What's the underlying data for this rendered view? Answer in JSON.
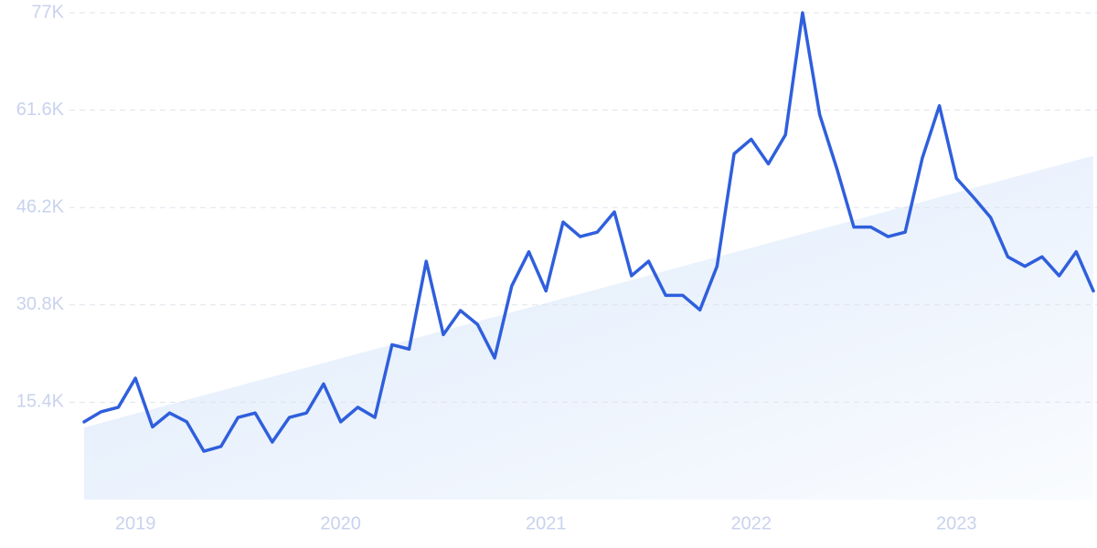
{
  "chart_data": {
    "type": "line",
    "categories": [
      null,
      null,
      null,
      "2019",
      null,
      null,
      null,
      null,
      null,
      null,
      null,
      null,
      null,
      null,
      null,
      "2020",
      null,
      null,
      null,
      null,
      null,
      null,
      null,
      null,
      null,
      null,
      null,
      "2021",
      null,
      null,
      null,
      null,
      null,
      null,
      null,
      null,
      null,
      null,
      null,
      "2022",
      null,
      null,
      null,
      null,
      null,
      null,
      null,
      null,
      null,
      null,
      null,
      "2023",
      null,
      null,
      null,
      null,
      null,
      null,
      null,
      null
    ],
    "series": [
      {
        "color": "#2f5fdc",
        "values": [
          12300,
          13900,
          14600,
          19200,
          11500,
          13700,
          12300,
          7650,
          8400,
          13000,
          13700,
          9100,
          13000,
          13700,
          18300,
          12300,
          14600,
          13000,
          24500,
          23800,
          37700,
          26100,
          29900,
          27700,
          22400,
          33800,
          39200,
          33000,
          43900,
          41600,
          42300,
          45500,
          35400,
          37700,
          32300,
          32300,
          30000,
          36900,
          54700,
          57000,
          53100,
          57700,
          77000,
          60900,
          52400,
          43100,
          43100,
          41600,
          42300,
          54000,
          62300,
          50800,
          47800,
          44600,
          38400,
          36900,
          38400,
          35400,
          39200,
          33000
        ]
      }
    ],
    "trend": {
      "color": "#dce9fb",
      "values": [
        11400,
        54400
      ]
    },
    "ylim": [
      0,
      77000
    ],
    "yticks": [
      {
        "value": 15400,
        "label": "15.4K"
      },
      {
        "value": 30800,
        "label": "30.8K"
      },
      {
        "value": 46200,
        "label": "46.2K"
      },
      {
        "value": 61600,
        "label": "61.6K"
      },
      {
        "value": 77000,
        "label": "77K"
      }
    ],
    "grid": true
  }
}
